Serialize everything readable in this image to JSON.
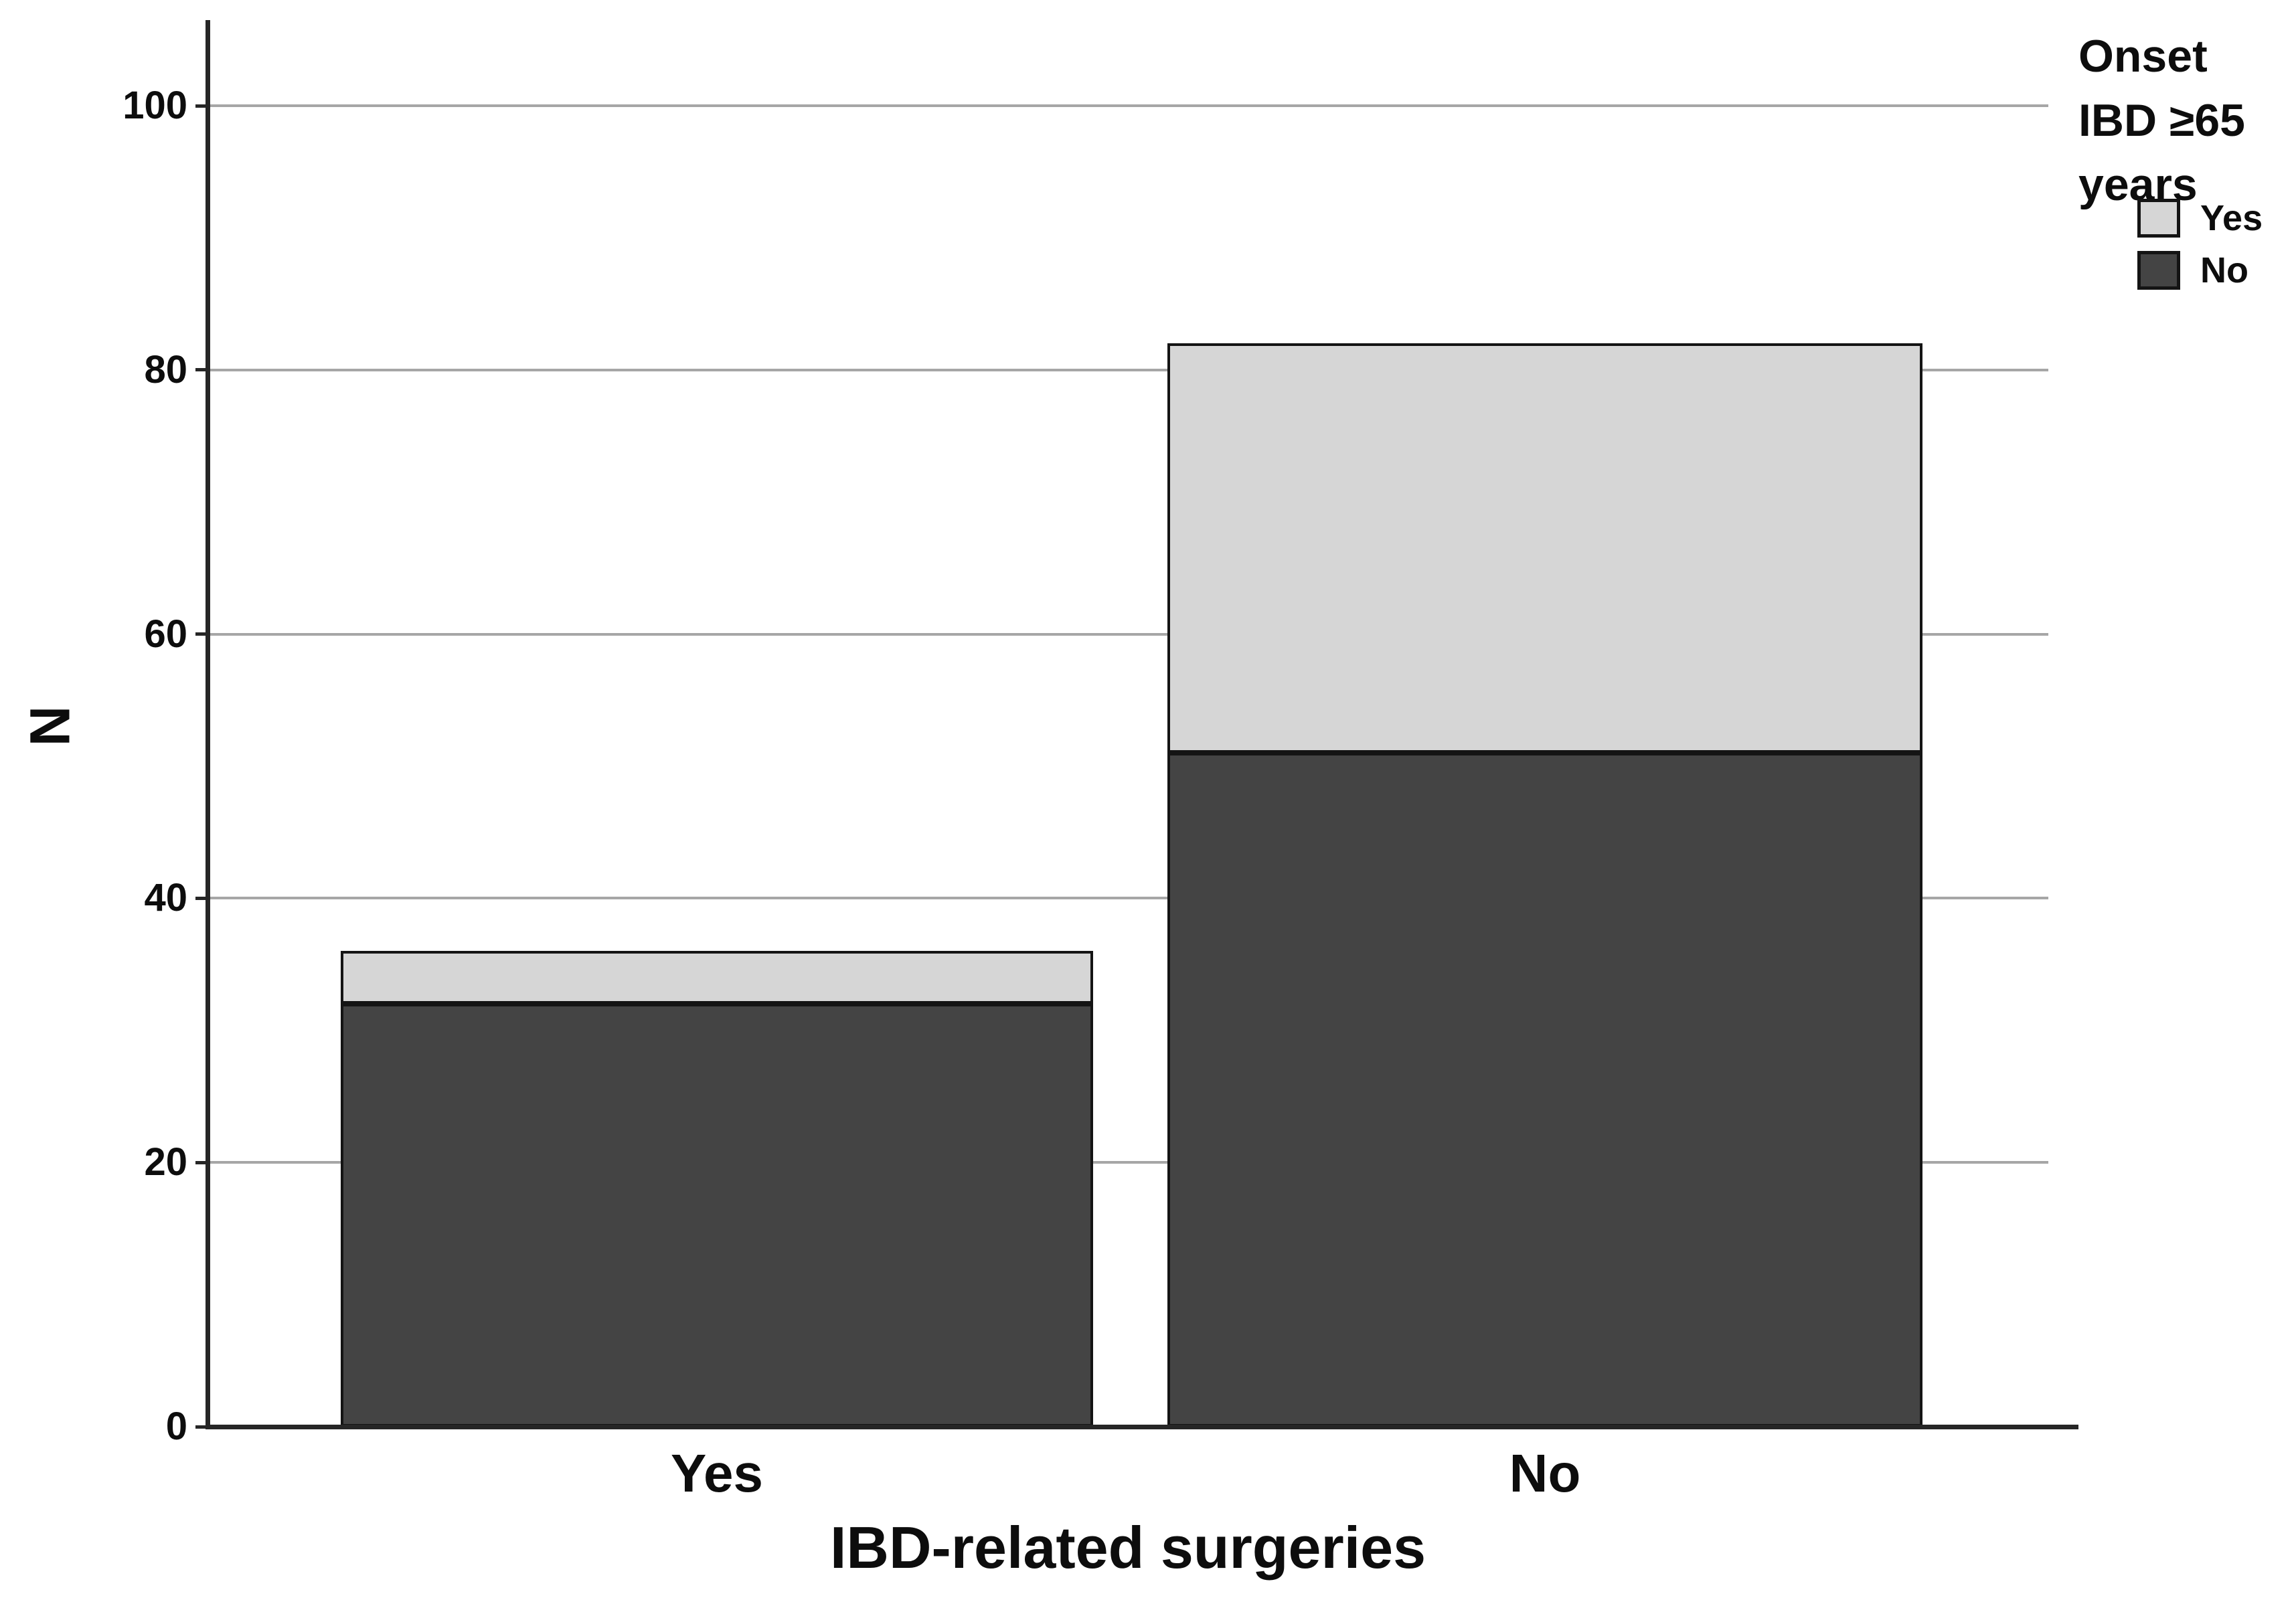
{
  "figure": {
    "background": "#ffffff",
    "colors": {
      "bar_dark": "#444444",
      "bar_light": "#d6d6d6",
      "bar_border": "#141414",
      "gridline": "#a6a6a6",
      "axis": "#262626",
      "text": "#0d0d0d"
    }
  },
  "chart_data": {
    "type": "bar",
    "stacked": true,
    "title": "",
    "xlabel": "IBD-related surgeries",
    "ylabel": "N",
    "categories": [
      "Yes",
      "No"
    ],
    "series": [
      {
        "name": "No",
        "color": "#444444",
        "values": [
          32,
          51
        ]
      },
      {
        "name": "Yes",
        "color": "#d6d6d6",
        "values": [
          4,
          31
        ]
      }
    ],
    "stack_order": "bottom-to-top",
    "totals": [
      36,
      82
    ],
    "ylim": [
      0,
      100
    ],
    "yticks": [
      0,
      20,
      40,
      60,
      80,
      100
    ],
    "grid": true,
    "legend_position": "top-right",
    "legend": {
      "title": "Onset IBD ≥65 years",
      "title_lines": [
        "Onset",
        "IBD ≥65",
        "years"
      ],
      "entries": [
        {
          "label": "Yes",
          "series": "Yes"
        },
        {
          "label": "No",
          "series": "No"
        }
      ]
    }
  }
}
